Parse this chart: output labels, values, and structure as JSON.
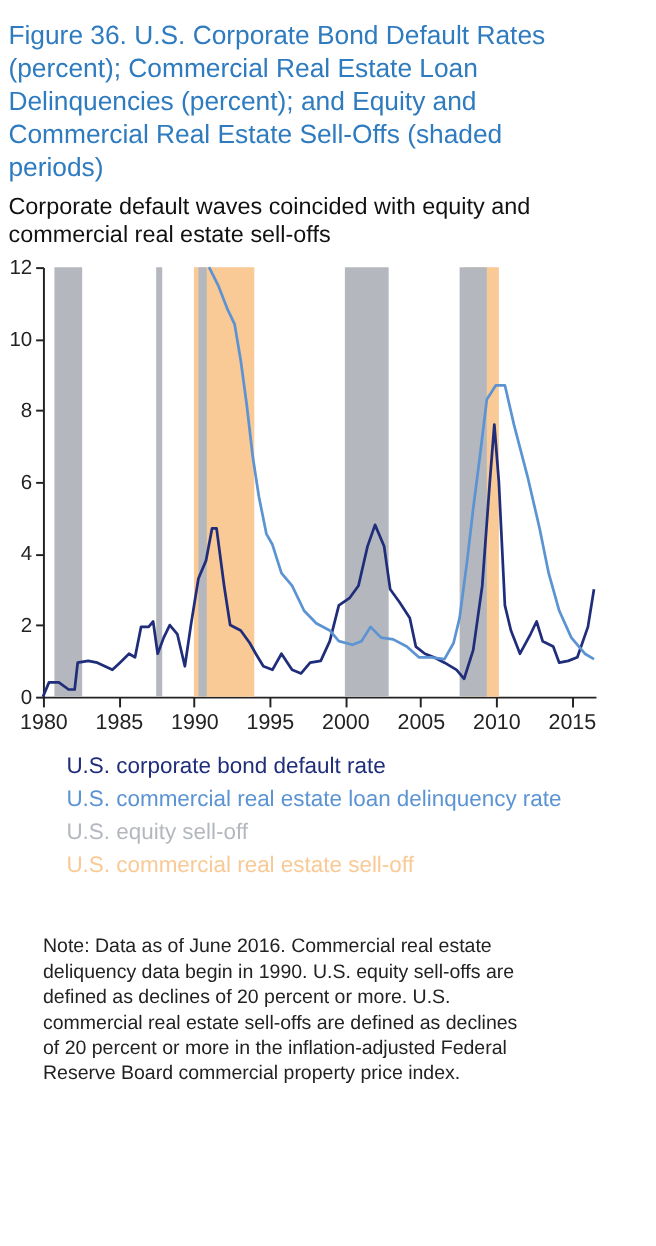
{
  "chart_data": {
    "type": "line",
    "title": "Figure 36. U.S. Corporate Bond Default Rates (percent); Commercial Real Estate Loan Delinquencies (percent); and Equity and Commercial Real Estate Sell-Offs (shaded periods)",
    "subtitle": "Corporate default waves coincided with equity and commercial real estate sell-offs",
    "xlim": [
      1980,
      2016.6
    ],
    "xticks": [
      1980,
      1985,
      1990,
      1995,
      2000,
      2005,
      2010,
      2015
    ],
    "ylim": [
      0,
      12
    ],
    "yticks": [
      0,
      2,
      4,
      6,
      8,
      10,
      12
    ],
    "grid": false,
    "legend": "bottom",
    "line_style": "solid",
    "marker": "none",
    "bands": [
      {
        "axis": "x",
        "from": 1980.76,
        "to": 1982.6,
        "label": "U.S. equity sell-off",
        "color": "#b4b8be"
      },
      {
        "axis": "x",
        "from": 1987.5,
        "to": 1987.9,
        "color": "#b4b8be"
      },
      {
        "axis": "x",
        "from": 2000.0,
        "to": 2002.9,
        "color": "#b4b8be"
      },
      {
        "axis": "x",
        "from": 1990.0,
        "to": 1994.0,
        "label": "U.S. commercial real estate sell-off",
        "color": "#f9c996"
      },
      {
        "axis": "x",
        "from": 2007.9,
        "to": 2010.2,
        "color": "#f9c996"
      },
      {
        "axis": "x",
        "from": 1990.3,
        "to": 1990.85,
        "color": "#b4b8be"
      },
      {
        "axis": "x",
        "from": 2007.6,
        "to": 2009.4,
        "color": "#b4b8be"
      }
    ],
    "series": [
      {
        "name": "U.S. corporate bond default rate",
        "color": "#1f2d7a",
        "x": [
          1980.0,
          1980.4,
          1981.05,
          1981.7,
          1982.1,
          1982.3,
          1983.0,
          1983.6,
          1984.6,
          1985.1,
          1985.7,
          1986.1,
          1986.5,
          1987.0,
          1987.3,
          1987.6,
          1988.0,
          1988.4,
          1988.9,
          1989.4,
          1989.8,
          1990.3,
          1990.8,
          1991.2,
          1991.5,
          1992.0,
          1992.4,
          1993.1,
          1993.7,
          1994.1,
          1994.6,
          1995.2,
          1995.8,
          1996.5,
          1997.1,
          1997.7,
          1998.4,
          1999.0,
          1999.6,
          2000.3,
          2000.9,
          2001.5,
          2002.0,
          2002.6,
          2003.0,
          2003.6,
          2004.3,
          2004.7,
          2005.3,
          2005.9,
          2006.6,
          2007.4,
          2007.9,
          2008.5,
          2009.1,
          2009.6,
          2009.9,
          2010.2,
          2010.6,
          2011.0,
          2011.6,
          2012.3,
          2012.7,
          2013.1,
          2013.8,
          2014.2,
          2014.8,
          2015.4,
          2016.1,
          2016.5
        ],
        "values": [
          0,
          0.4,
          0.4,
          0.2,
          0.2,
          0.95,
          1.0,
          0.95,
          0.75,
          0.95,
          1.2,
          1.1,
          1.95,
          1.95,
          2.1,
          1.2,
          1.65,
          2.0,
          1.75,
          0.85,
          2.0,
          3.3,
          3.8,
          4.7,
          4.7,
          3.1,
          2.0,
          1.85,
          1.5,
          1.2,
          0.85,
          0.75,
          1.2,
          0.75,
          0.65,
          0.95,
          1.0,
          1.55,
          2.55,
          2.75,
          3.1,
          4.2,
          4.8,
          4.2,
          3.0,
          2.65,
          2.2,
          1.4,
          1.2,
          1.1,
          0.95,
          0.75,
          0.5,
          1.3,
          3.1,
          6.0,
          7.6,
          6.0,
          2.55,
          1.85,
          1.2,
          1.75,
          2.1,
          1.55,
          1.4,
          0.95,
          1.0,
          1.1,
          1.95,
          3.0
        ]
      },
      {
        "name": "U.S. commercial real estate loan delinquency rate",
        "color": "#5b93d3",
        "x": [
          1991.0,
          1991.6,
          1992.2,
          1992.7,
          1993.1,
          1993.5,
          1993.9,
          1994.3,
          1994.8,
          1995.2,
          1995.8,
          1996.5,
          1997.3,
          1998.1,
          1999.0,
          1999.6,
          2000.5,
          2001.1,
          2001.7,
          2002.4,
          2003.2,
          2004.1,
          2004.9,
          2005.7,
          2006.6,
          2007.2,
          2007.6,
          2008.1,
          2008.5,
          2009.0,
          2009.4,
          2010.0,
          2010.6,
          2011.2,
          2012.1,
          2012.9,
          2013.5,
          2014.2,
          2015.0,
          2015.9,
          2016.5
        ],
        "values": [
          12,
          11.5,
          10.85,
          10.4,
          9.4,
          8.15,
          6.7,
          5.6,
          4.55,
          4.25,
          3.45,
          3.1,
          2.4,
          2.05,
          1.85,
          1.55,
          1.45,
          1.55,
          1.95,
          1.65,
          1.6,
          1.4,
          1.1,
          1.1,
          1.05,
          1.5,
          2.2,
          3.8,
          5.25,
          6.9,
          8.3,
          8.7,
          8.7,
          7.6,
          6.15,
          4.7,
          3.45,
          2.4,
          1.65,
          1.2,
          1.05
        ]
      }
    ],
    "annotations": [
      "Note: Data as of June 2016. Commercial real estate deliquency data begin in 1990. U.S. equity sell-offs are defined as declines of 20 percent or more. U.S. commercial real estate sell-offs are defined as declines of 20 percent or more in the inflation-adjusted Federal Reserve Board commercial property price index."
    ]
  }
}
